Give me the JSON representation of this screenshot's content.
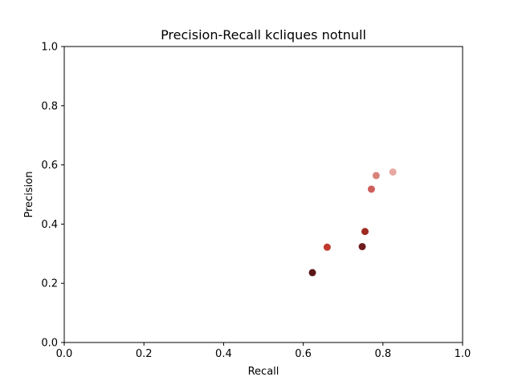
{
  "chart_data": {
    "type": "scatter",
    "title": "Precision-Recall kcliques notnull",
    "xlabel": "Recall",
    "ylabel": "Precision",
    "xlim": [
      0.0,
      1.0
    ],
    "ylim": [
      0.0,
      1.0
    ],
    "xticks": [
      "0.0",
      "0.2",
      "0.4",
      "0.6",
      "0.8",
      "1.0"
    ],
    "yticks": [
      "0.0",
      "0.2",
      "0.4",
      "0.6",
      "0.8",
      "1.0"
    ],
    "grid": false,
    "points": [
      {
        "x": 0.623,
        "y": 0.236,
        "color": "#5a1616"
      },
      {
        "x": 0.66,
        "y": 0.322,
        "color": "#c0392f"
      },
      {
        "x": 0.748,
        "y": 0.324,
        "color": "#6e1c1c"
      },
      {
        "x": 0.755,
        "y": 0.375,
        "color": "#9e2a22"
      },
      {
        "x": 0.771,
        "y": 0.518,
        "color": "#cd5e5a"
      },
      {
        "x": 0.783,
        "y": 0.564,
        "color": "#d9827b"
      },
      {
        "x": 0.825,
        "y": 0.576,
        "color": "#e8a8a2"
      }
    ]
  }
}
